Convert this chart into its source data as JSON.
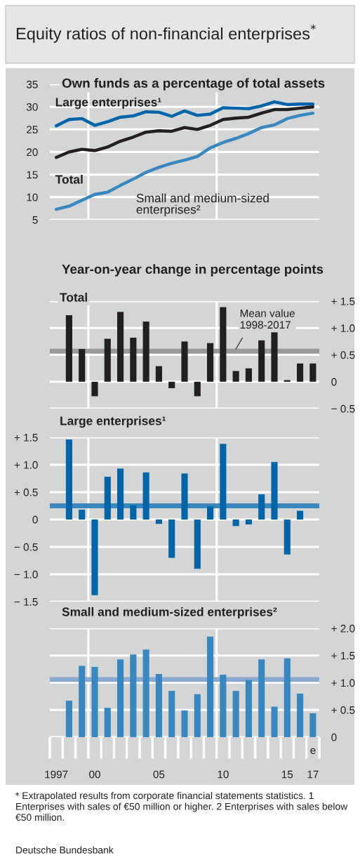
{
  "chart_data": [
    {
      "type": "line",
      "title": "Equity ratios of non-financial enterprises$^{*}$",
      "subtitle": "Own funds as a percentage of total assets",
      "x": [
        1997,
        1998,
        1999,
        2000,
        2001,
        2002,
        2003,
        2004,
        2005,
        2006,
        2007,
        2008,
        2009,
        2010,
        2011,
        2012,
        2013,
        2014,
        2015,
        2016,
        2017
      ],
      "series": [
        {
          "name": "Large enterprises¹",
          "color": "#0064a6",
          "values": [
            25.8,
            27.2,
            27.4,
            25.9,
            26.7,
            27.7,
            28.0,
            28.9,
            28.8,
            27.9,
            29.1,
            28.1,
            28.4,
            29.8,
            29.7,
            29.6,
            30.2,
            31.1,
            30.5,
            30.6,
            30.6
          ]
        },
        {
          "name": "Total",
          "color": "#231f20",
          "values": [
            18.8,
            20.0,
            20.6,
            20.3,
            21.1,
            22.4,
            23.3,
            24.4,
            24.7,
            24.6,
            25.4,
            25.0,
            25.9,
            27.2,
            27.5,
            27.7,
            28.6,
            29.4,
            29.4,
            29.7,
            30.0
          ]
        },
        {
          "name": "Small and medium-sized\nenterprises²",
          "color": "#3a87c0",
          "values": [
            7.3,
            8.0,
            9.3,
            10.6,
            11.1,
            12.6,
            14.0,
            15.5,
            16.6,
            17.5,
            18.2,
            19.0,
            20.9,
            22.1,
            23.0,
            24.1,
            25.4,
            26.0,
            27.4,
            28.1,
            28.6
          ]
        }
      ],
      "xlim": [
        1996.5,
        2017.5
      ],
      "ylim": [
        5,
        35
      ],
      "yticks": [
        5,
        10,
        15,
        20,
        25,
        30,
        35
      ],
      "grid": "y",
      "tick_labels": "y",
      "line_style": "solid",
      "ref_lines": [
        {
          "axis": "x",
          "value": 1999.5,
          "color": "#ffffff"
        },
        {
          "axis": "x",
          "value": 2009.5,
          "color": "#ffffff"
        }
      ]
    },
    {
      "type": "bar",
      "subtitle": "Year-on-year change in percentage points",
      "title": "Total",
      "x": [
        1998,
        1999,
        2000,
        2001,
        2002,
        2003,
        2004,
        2005,
        2006,
        2007,
        2008,
        2009,
        2010,
        2011,
        2012,
        2013,
        2014,
        2015,
        2016,
        2017
      ],
      "values": [
        1.24,
        0.61,
        -0.27,
        0.8,
        1.3,
        0.82,
        1.12,
        0.29,
        -0.12,
        0.75,
        -0.27,
        0.72,
        1.39,
        0.2,
        0.25,
        0.77,
        0.92,
        0.03,
        0.34,
        0.34
      ],
      "color": "#231f20",
      "xlim": [
        1996.5,
        2017.5
      ],
      "ylim": [
        -0.5,
        1.5
      ],
      "yticks": [
        {
          "value": -0.5,
          "label": "− 0.5"
        },
        0,
        {
          "value": 0.5,
          "label": "+ 0.5"
        },
        {
          "value": 1.0,
          "label": "+ 1.0"
        },
        {
          "value": 1.5,
          "label": "+ 1.5"
        }
      ],
      "grid": "y",
      "tick_labels": "y",
      "ref_lines": [
        {
          "axis": "y",
          "value": 0.57,
          "label": "Mean value\n1998-2017",
          "color": "#999999"
        },
        {
          "axis": "x",
          "value": 1999.5,
          "color": "#ffffff"
        },
        {
          "axis": "x",
          "value": 2009.5,
          "color": "#ffffff"
        }
      ]
    },
    {
      "type": "bar",
      "title": "Large enterprises¹",
      "x": [
        1998,
        1999,
        2000,
        2001,
        2002,
        2003,
        2004,
        2005,
        2006,
        2007,
        2008,
        2009,
        2010,
        2011,
        2012,
        2013,
        2014,
        2015,
        2016,
        2017
      ],
      "values": [
        1.46,
        0.18,
        -1.38,
        0.78,
        0.93,
        0.26,
        0.86,
        -0.08,
        -0.7,
        0.84,
        -0.9,
        0.24,
        1.38,
        -0.12,
        -0.09,
        0.46,
        1.05,
        -0.64,
        0.16,
        0
      ],
      "color": "#0064a6",
      "xlim": [
        1996.5,
        2017.5
      ],
      "ylim": [
        -1.5,
        1.5
      ],
      "yticks": [
        {
          "value": -1.5,
          "label": "− 1.5"
        },
        {
          "value": -1.0,
          "label": "− 1.0"
        },
        {
          "value": -0.5,
          "label": "− 0.5"
        },
        0,
        {
          "value": 0.5,
          "label": "+ 0.5"
        },
        {
          "value": 1.0,
          "label": "+ 1.0"
        },
        {
          "value": 1.5,
          "label": "+ 1.5"
        }
      ],
      "grid": "y",
      "tick_labels": "y",
      "ref_lines": [
        {
          "axis": "y",
          "value": 0.25,
          "color": "#3a87c0"
        },
        {
          "axis": "x",
          "value": 1999.5,
          "color": "#ffffff"
        },
        {
          "axis": "x",
          "value": 2009.5,
          "color": "#ffffff"
        }
      ]
    },
    {
      "type": "bar",
      "title": "Small and medium-sized enterprises²",
      "x": [
        1998,
        1999,
        2000,
        2001,
        2002,
        2003,
        2004,
        2005,
        2006,
        2007,
        2008,
        2009,
        2010,
        2011,
        2012,
        2013,
        2014,
        2015,
        2016,
        2017
      ],
      "values": [
        0.67,
        1.31,
        1.29,
        0.54,
        1.43,
        1.52,
        1.61,
        1.16,
        0.85,
        0.49,
        0.79,
        1.85,
        1.15,
        0.85,
        1.05,
        1.43,
        0.56,
        1.45,
        0.8,
        0.44
      ],
      "color": "#3a87c0",
      "xlim": [
        1996.5,
        2017.5
      ],
      "ylim": [
        0,
        2.0
      ],
      "xticks": [
        {
          "value": 1997,
          "label": "1997"
        },
        {
          "value": 2000,
          "label": "00"
        },
        {
          "value": 2005,
          "label": "05"
        },
        {
          "value": 2010,
          "label": "10"
        },
        {
          "value": 2015,
          "label": "15"
        },
        {
          "value": 2017,
          "label": "17"
        }
      ],
      "yticks": [
        0,
        {
          "value": 0.5,
          "label": "+ 0.5"
        },
        {
          "value": 1.0,
          "label": "+ 1.0"
        },
        {
          "value": 1.5,
          "label": "+ 1.5"
        },
        {
          "value": 2.0,
          "label": "+ 2.0"
        }
      ],
      "grid": "y",
      "ref_lines": [
        {
          "axis": "y",
          "value": 1.06,
          "color": "#88aad0"
        },
        {
          "axis": "x",
          "value": 1999.5,
          "color": "#ffffff"
        },
        {
          "axis": "x",
          "value": 2009.5,
          "color": "#ffffff"
        }
      ],
      "annotations": [
        "e",
        "* Extrapolated results from corporate financial statements statistics. 1 Enterprises with sales of €50 million or higher. 2 Enterprises with sales below €50 million.",
        "Deutsche Bundesbank"
      ]
    }
  ]
}
